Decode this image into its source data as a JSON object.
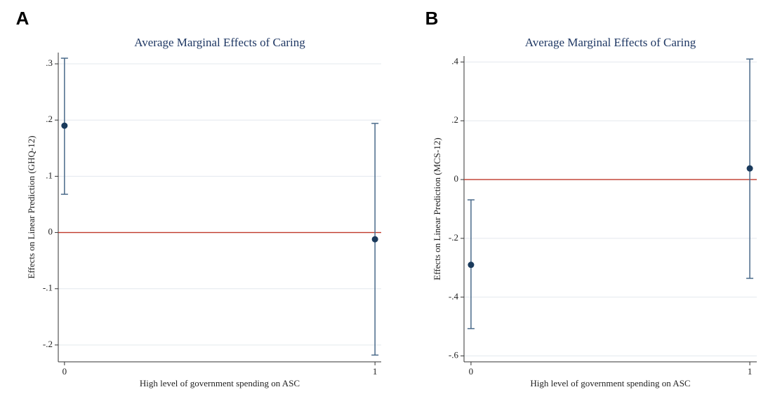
{
  "chart_data": [
    {
      "type": "errorbar",
      "panel": "A",
      "title": "Average Marginal Effects of Caring",
      "xlabel": "High level of government spending on ASC",
      "ylabel": "Effects on Linear Prediction (GHQ-12)",
      "x": [
        0,
        1
      ],
      "values": [
        0.19,
        -0.012
      ],
      "lower": [
        0.068,
        -0.218
      ],
      "upper": [
        0.31,
        0.194
      ],
      "color": "#1a3a5c",
      "bar_color": "#4a6a8a",
      "hline": 0,
      "hline_color": "#c0392b",
      "xlim": [
        -0.02,
        1.02
      ],
      "xticks": [
        0,
        1
      ],
      "ylim": [
        -0.23,
        0.32
      ],
      "yticks": [
        {
          "value": -0.2,
          "label": "-.2"
        },
        {
          "value": -0.1,
          "label": "-.1"
        },
        0,
        {
          "value": 0.1,
          "label": ".1"
        },
        {
          "value": 0.2,
          "label": ".2"
        },
        {
          "value": 0.3,
          "label": ".3"
        }
      ],
      "grid": true
    },
    {
      "type": "errorbar",
      "panel": "B",
      "title": "Average Marginal Effects of Caring",
      "xlabel": "High level of government spending on ASC",
      "ylabel": "Effects on Linear Prediction (MCS-12)",
      "x": [
        0,
        1
      ],
      "values": [
        -0.29,
        0.038
      ],
      "lower": [
        -0.507,
        -0.336
      ],
      "upper": [
        -0.069,
        0.41
      ],
      "color": "#1a3a5c",
      "bar_color": "#4a6a8a",
      "hline": 0,
      "hline_color": "#c0392b",
      "xlim": [
        -0.025,
        1.025
      ],
      "xticks": [
        0,
        1
      ],
      "ylim": [
        -0.62,
        0.42
      ],
      "yticks": [
        {
          "value": -0.6,
          "label": "-.6"
        },
        {
          "value": -0.4,
          "label": "-.4"
        },
        {
          "value": -0.2,
          "label": "-.2"
        },
        0,
        {
          "value": 0.2,
          "label": ".2"
        },
        {
          "value": 0.4,
          "label": ".4"
        }
      ],
      "grid": true
    }
  ]
}
